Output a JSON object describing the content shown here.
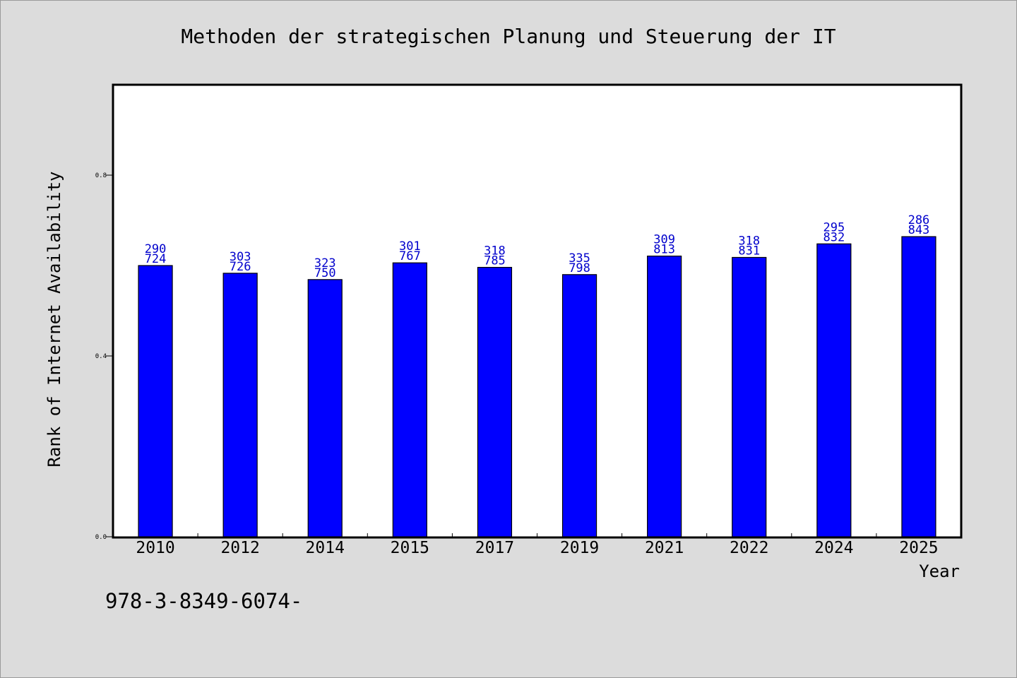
{
  "chart_data": {
    "type": "bar",
    "title": "Methoden der strategischen Planung und Steuerung der IT",
    "xlabel": "Year",
    "ylabel": "Rank of Internet Availability",
    "categories": [
      "2010",
      "2012",
      "2014",
      "2015",
      "2017",
      "2019",
      "2021",
      "2022",
      "2024",
      "2025"
    ],
    "values": [
      0.6,
      0.583,
      0.569,
      0.606,
      0.596,
      0.58,
      0.621,
      0.618,
      0.648,
      0.664
    ],
    "labels_top": [
      "290",
      "303",
      "323",
      "301",
      "318",
      "335",
      "309",
      "318",
      "295",
      "286"
    ],
    "labels_bottom": [
      "724",
      "726",
      "750",
      "767",
      "785",
      "798",
      "813",
      "831",
      "832",
      "843"
    ],
    "ylim": [
      0,
      1.0
    ],
    "yticks": [
      0.0,
      0.4,
      0.8
    ],
    "ytick_labels": [
      "0.0",
      "0.4",
      "0.8"
    ],
    "bar_color": "#0000ff",
    "label_color": "#0000cc",
    "grid": false
  },
  "footnote": "978-3-8349-6074-"
}
